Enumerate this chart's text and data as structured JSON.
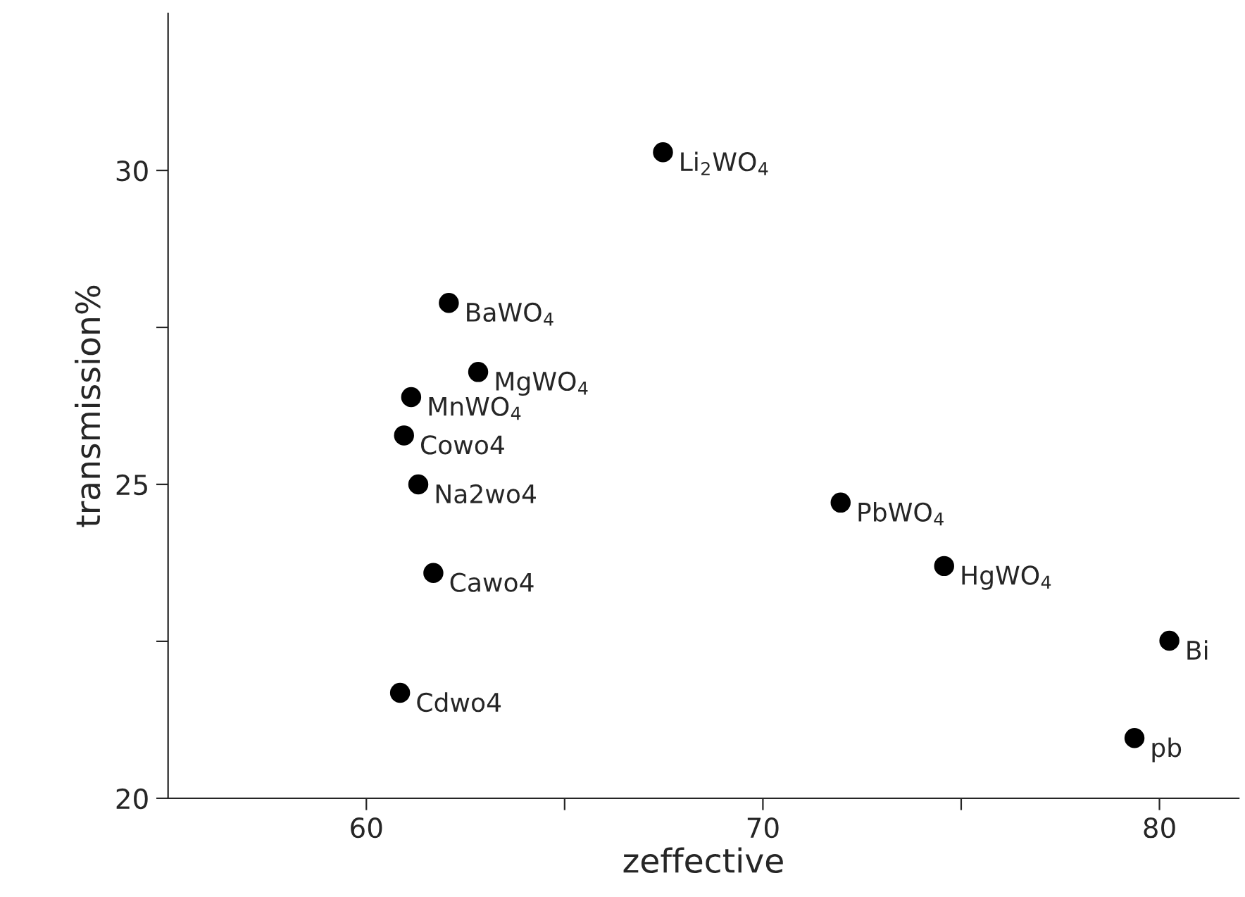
{
  "chart_data": {
    "type": "scatter",
    "xlabel": "zeffective",
    "ylabel": "transmission%",
    "x": [
      67.48,
      62.08,
      62.82,
      61.13,
      60.95,
      61.31,
      61.69,
      60.85,
      71.96,
      74.57,
      80.25,
      79.37
    ],
    "values": [
      30.29,
      27.89,
      26.79,
      26.39,
      25.78,
      25.0,
      23.59,
      21.68,
      24.71,
      23.7,
      22.51,
      20.96
    ],
    "color": "#000000",
    "marker": "circle",
    "grid": false,
    "legend": false,
    "xlim": [
      55,
      82
    ],
    "xticks": [
      60,
      {
        "value": 65,
        "label": null
      },
      70,
      {
        "value": 75,
        "label": null
      },
      80
    ],
    "ylim": [
      20,
      32.5
    ],
    "yticks": [
      20,
      {
        "value": 22.5,
        "label": null
      },
      25,
      {
        "value": 27.5,
        "label": null
      },
      30
    ],
    "annotations": [
      {
        "text": "Li$_{2}$WO$_{4}$",
        "x": 67.48,
        "y": 30.29
      },
      {
        "text": "BaWO$_{4}$",
        "x": 62.08,
        "y": 27.89
      },
      {
        "text": "MgWO$_{4}$",
        "x": 62.82,
        "y": 26.79
      },
      {
        "text": "MnWO$_{4}$",
        "x": 61.13,
        "y": 26.39
      },
      {
        "text": "Cowo4",
        "x": 60.95,
        "y": 25.78
      },
      {
        "text": "Na2wo4",
        "x": 61.31,
        "y": 25.0
      },
      {
        "text": "Cawo4",
        "x": 61.69,
        "y": 23.59
      },
      {
        "text": "Cdwo4",
        "x": 60.85,
        "y": 21.68
      },
      {
        "text": "PbWO$_{4}$",
        "x": 71.96,
        "y": 24.71
      },
      {
        "text": "HgWO$_{4}$",
        "x": 74.57,
        "y": 23.7
      },
      {
        "text": "Bi",
        "x": 80.25,
        "y": 22.51
      },
      {
        "text": "pb",
        "x": 79.37,
        "y": 20.96
      }
    ]
  }
}
